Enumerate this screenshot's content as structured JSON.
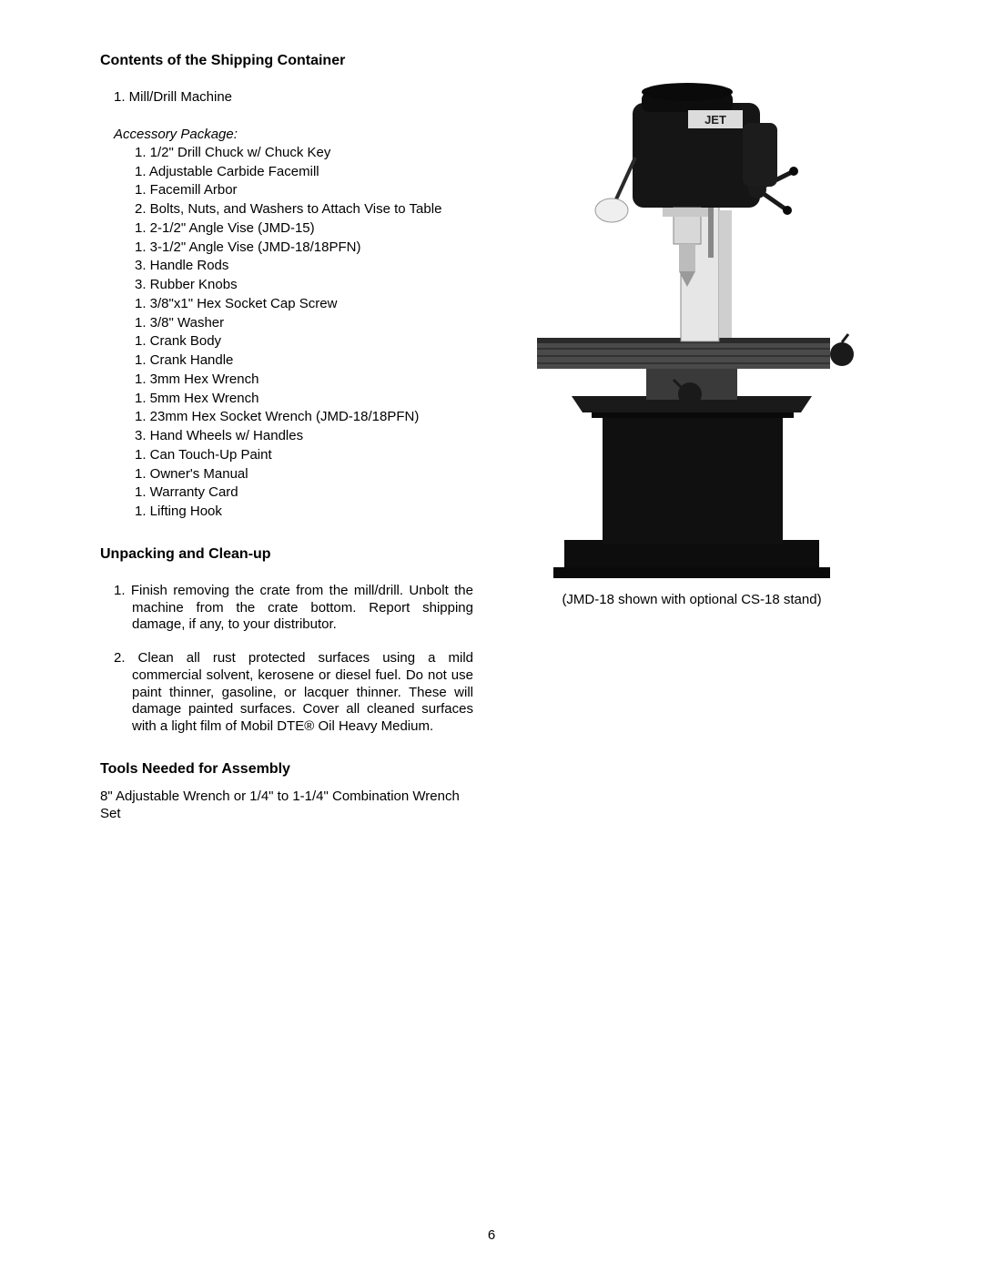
{
  "page_number": "6",
  "section1": {
    "heading": "Contents of the Shipping Container",
    "top_items": [
      {
        "qty": "1.",
        "label": "Mill/Drill Machine"
      }
    ],
    "subhead": "Accessory Package:",
    "accessory_items": [
      {
        "qty": "1.",
        "label": "1/2\" Drill Chuck w/ Chuck Key"
      },
      {
        "qty": "1.",
        "label": "Adjustable Carbide Facemill"
      },
      {
        "qty": "1.",
        "label": "Facemill Arbor"
      },
      {
        "qty": "2.",
        "label": "Bolts, Nuts, and Washers to Attach Vise to Table"
      },
      {
        "qty": "1.",
        "label": "2-1/2\" Angle Vise (JMD-15)"
      },
      {
        "qty": "1.",
        "label": "3-1/2\" Angle Vise (JMD-18/18PFN)"
      },
      {
        "qty": "3.",
        "label": "Handle Rods"
      },
      {
        "qty": "3.",
        "label": "Rubber Knobs"
      },
      {
        "qty": "1.",
        "label": "3/8\"x1\" Hex Socket Cap Screw"
      },
      {
        "qty": "1.",
        "label": "3/8\" Washer"
      },
      {
        "qty": "1.",
        "label": "Crank Body"
      },
      {
        "qty": "1.",
        "label": "Crank Handle"
      },
      {
        "qty": "1.",
        "label": "3mm Hex Wrench"
      },
      {
        "qty": "1.",
        "label": "5mm Hex Wrench"
      },
      {
        "qty": "1.",
        "label": "23mm Hex Socket Wrench (JMD-18/18PFN)"
      },
      {
        "qty": "3.",
        "label": "Hand Wheels w/ Handles"
      },
      {
        "qty": "1.",
        "label": "Can Touch-Up Paint"
      },
      {
        "qty": "1.",
        "label": "Owner's Manual"
      },
      {
        "qty": "1.",
        "label": "Warranty Card"
      },
      {
        "qty": "1.",
        "label": "Lifting Hook"
      }
    ]
  },
  "section2": {
    "heading": "Unpacking and Clean-up",
    "items": [
      {
        "qty": "1.",
        "label": "Finish removing the crate from the mill/drill.  Unbolt the machine from the crate bottom.  Report shipping damage, if any, to your distributor."
      },
      {
        "qty": "2.",
        "label": "Clean all rust protected surfaces using a mild commercial solvent, kerosene or diesel fuel.  Do not use paint thinner, gasoline, or lacquer thinner.  These will damage painted surfaces.  Cover all cleaned surfaces with a light film of Mobil DTE® Oil Heavy Medium."
      }
    ]
  },
  "section3": {
    "heading": "Tools Needed for Assembly",
    "text": "8\" Adjustable Wrench or 1/4\" to 1-1/4\" Combination Wrench Set"
  },
  "image": {
    "caption": "(JMD-18 shown with optional CS-18 stand)",
    "brand_label": "JET",
    "colors": {
      "head": "#1a1a1a",
      "column": "#e8e8e8",
      "table": "#4a4a4a",
      "stand": "#0f0f0f",
      "shadow": "#555555"
    }
  }
}
